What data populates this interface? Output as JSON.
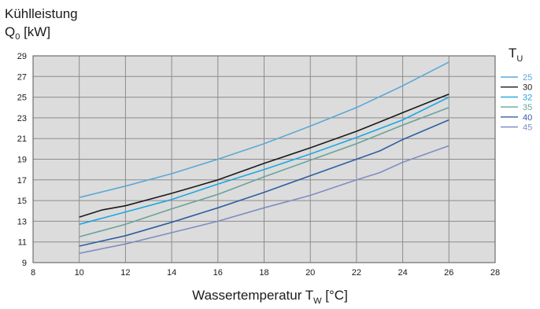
{
  "chart_data": {
    "type": "line",
    "ylabel_line1": "Kühlleistung",
    "ylabel_line2_main": "Q",
    "ylabel_line2_sub": "0",
    "ylabel_line2_unit": " [kW]",
    "xlabel_main": "Wassertemperatur T",
    "xlabel_sub": "W",
    "xlabel_unit": " [°C]",
    "legend_title_main": "T",
    "legend_title_sub": "U",
    "xlim": [
      8,
      28
    ],
    "ylim": [
      9,
      29
    ],
    "xticks": [
      "8",
      "10",
      "12",
      "14",
      "16",
      "18",
      "20",
      "22",
      "24",
      "26",
      "28"
    ],
    "yticks": [
      "9",
      "11",
      "13",
      "15",
      "17",
      "19",
      "21",
      "23",
      "25",
      "27",
      "29"
    ],
    "grid": true,
    "legend_position": "right",
    "series": [
      {
        "name": "25",
        "color": "#5aa8d6",
        "x": [
          10,
          12,
          14,
          16,
          18,
          20,
          22,
          24,
          26
        ],
        "y": [
          15.3,
          16.4,
          17.6,
          19.0,
          20.5,
          22.2,
          24.0,
          26.1,
          28.4
        ]
      },
      {
        "name": "30",
        "color": "#1a1a1a",
        "x": [
          10,
          11,
          12,
          14,
          16,
          18,
          20,
          22,
          24,
          26
        ],
        "y": [
          13.4,
          14.1,
          14.5,
          15.7,
          17.0,
          18.6,
          20.1,
          21.7,
          23.5,
          25.3
        ]
      },
      {
        "name": "32",
        "color": "#1ea7e1",
        "x": [
          10,
          12,
          14,
          16,
          18,
          20,
          22,
          24,
          26
        ],
        "y": [
          12.7,
          13.9,
          15.1,
          16.6,
          18.0,
          19.5,
          21.1,
          22.8,
          25.0
        ]
      },
      {
        "name": "35",
        "color": "#6aa39a",
        "x": [
          10,
          12,
          14,
          16,
          18,
          20,
          22,
          24,
          26
        ],
        "y": [
          11.5,
          12.7,
          14.2,
          15.6,
          17.3,
          18.9,
          20.5,
          22.3,
          24.0
        ]
      },
      {
        "name": "40",
        "color": "#2e5fa3",
        "x": [
          10,
          12,
          14,
          16,
          18,
          20,
          22,
          23,
          24,
          26
        ],
        "y": [
          10.6,
          11.6,
          12.9,
          14.3,
          15.8,
          17.4,
          19.0,
          19.8,
          20.9,
          22.8
        ]
      },
      {
        "name": "45",
        "color": "#7f8dc4",
        "x": [
          10,
          12,
          14,
          16,
          18,
          20,
          22,
          23,
          24,
          26
        ],
        "y": [
          9.9,
          10.8,
          11.9,
          13.0,
          14.3,
          15.5,
          17.0,
          17.7,
          18.7,
          20.3
        ]
      }
    ]
  }
}
